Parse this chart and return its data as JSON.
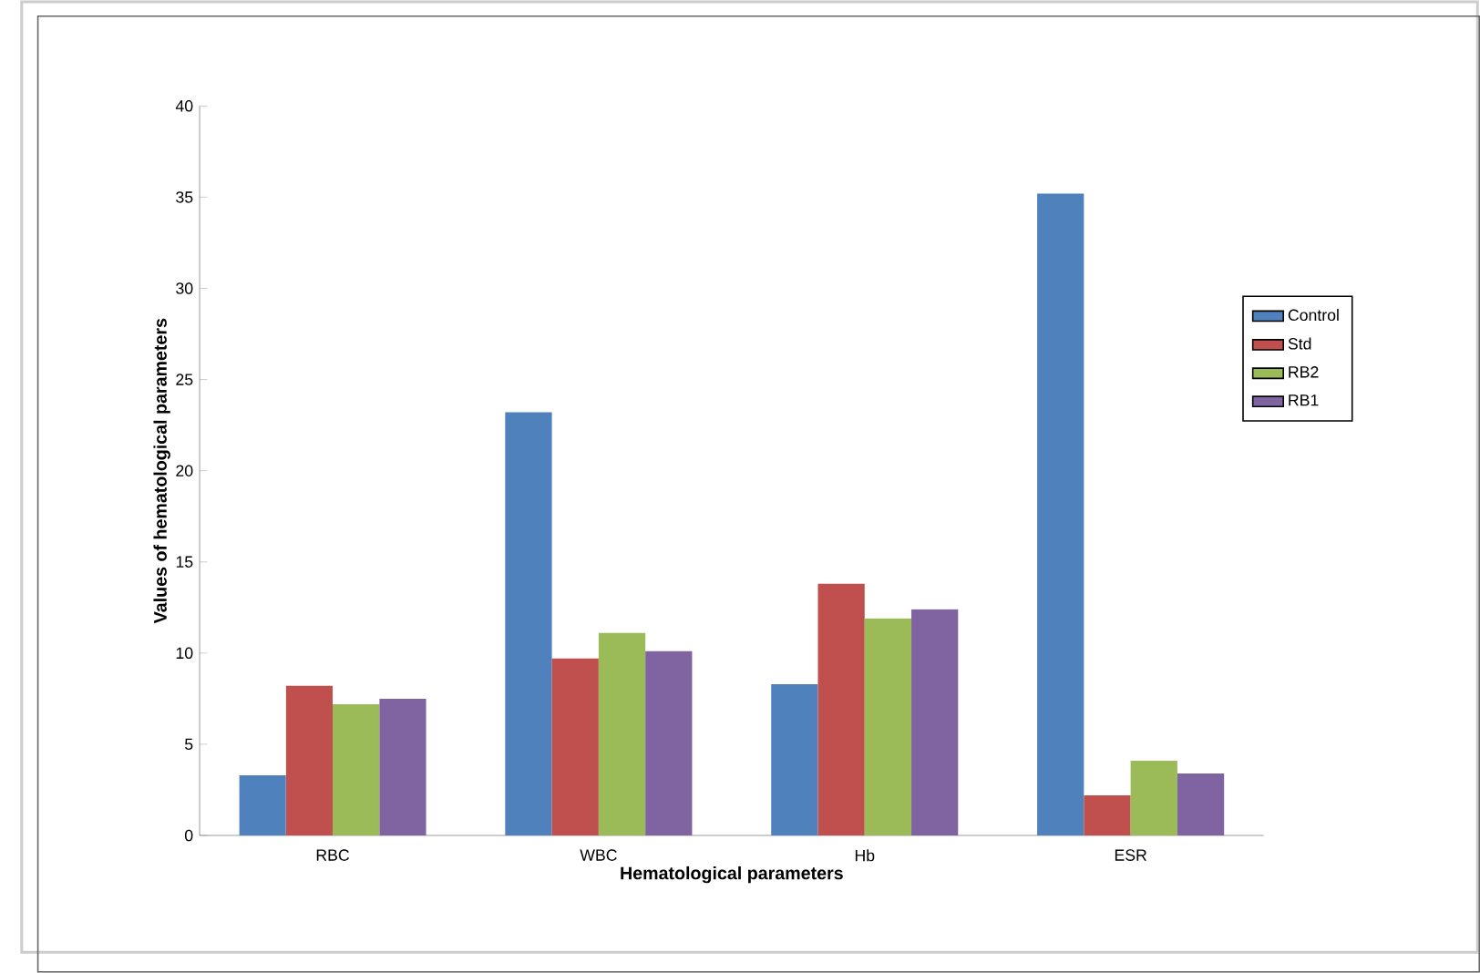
{
  "chart_data": {
    "type": "bar",
    "xlabel": "Hematological parameters",
    "ylabel": "Values of hematological parameters",
    "categories": [
      "RBC",
      "WBC",
      "Hb",
      "ESR"
    ],
    "series": [
      {
        "name": "Control",
        "color": "#4f81bd",
        "values": [
          3.3,
          23.2,
          8.3,
          35.2
        ]
      },
      {
        "name": "Std",
        "color": "#c0504d",
        "values": [
          8.2,
          9.7,
          13.8,
          2.2
        ]
      },
      {
        "name": "RB2",
        "color": "#9bbb59",
        "values": [
          7.2,
          11.1,
          11.9,
          4.1
        ]
      },
      {
        "name": "RB1",
        "color": "#8064a2",
        "values": [
          7.5,
          10.1,
          12.4,
          3.4
        ]
      }
    ],
    "ylim": [
      0,
      40
    ],
    "yticks": [
      0,
      5,
      10,
      15,
      20,
      25,
      30,
      35,
      40
    ],
    "legend": "right"
  }
}
